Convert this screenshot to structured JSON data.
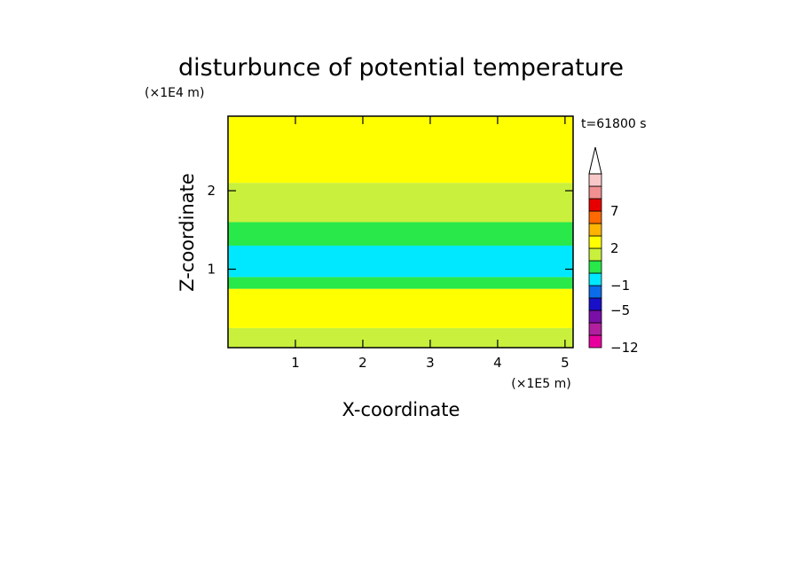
{
  "chart_data": {
    "type": "heatmap",
    "title": "disturbunce of potential temperature",
    "xlabel": "X-coordinate",
    "ylabel": "Z-coordinate",
    "x_unit": "(×1E5 m)",
    "y_unit": "(×1E4 m)",
    "time_label": "t=61800 s",
    "xlim": [
      0,
      5.12
    ],
    "ylim": [
      0,
      2.95
    ],
    "x_ticks": [
      1,
      2,
      3,
      4,
      5
    ],
    "y_ticks": [
      1,
      2
    ],
    "grid": false,
    "legend": "colorbar right, extends above",
    "colorbar": {
      "levels": [
        -12,
        -9,
        -7,
        -5,
        -3,
        -1,
        0,
        1,
        2,
        3,
        5,
        7,
        9,
        11
      ],
      "labels": [
        {
          "value": 7,
          "text": "7"
        },
        {
          "value": 2,
          "text": "2"
        },
        {
          "value": -1,
          "text": "−1"
        },
        {
          "value": -5,
          "text": "−5"
        },
        {
          "value": -12,
          "text": "−12"
        }
      ],
      "colors": [
        "#e8009e",
        "#b0209e",
        "#7a0fa8",
        "#1a0fc8",
        "#0a6ce8",
        "#00e8ff",
        "#28e84a",
        "#c8f03c",
        "#ffff00",
        "#ffb400",
        "#ff6a00",
        "#e80000",
        "#f09090",
        "#f8c8c8"
      ]
    },
    "field_bands": [
      {
        "z_from": 0.0,
        "z_to": 0.25,
        "value": 1.5
      },
      {
        "z_from": 0.25,
        "z_to": 0.75,
        "value": 2.5
      },
      {
        "z_from": 0.75,
        "z_to": 0.9,
        "value": 0.5
      },
      {
        "z_from": 0.9,
        "z_to": 1.3,
        "value": -0.5
      },
      {
        "z_from": 1.3,
        "z_to": 1.6,
        "value": 0.5
      },
      {
        "z_from": 1.6,
        "z_to": 2.1,
        "value": 1.5
      },
      {
        "z_from": 2.1,
        "z_to": 2.95,
        "value": 2.5
      }
    ]
  }
}
